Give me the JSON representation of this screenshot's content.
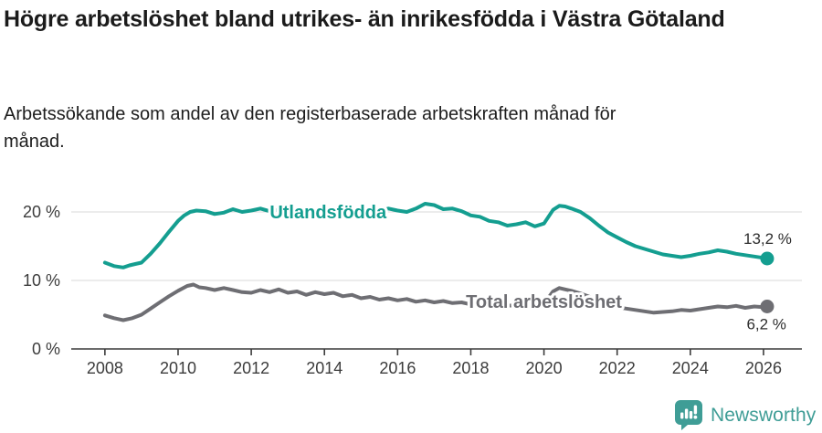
{
  "header": {
    "title": "Högre arbetslöshet bland utrikes- än inrikesfödda i Västra Götaland",
    "subtitle": "Arbetssökande som andel av den registerbaserade arbetskraften månad för månad."
  },
  "footer": {
    "brand": "Newsworthy",
    "brand_color": "#3F9D96"
  },
  "colors": {
    "accent_teal": "#149E90",
    "neutral_gray": "#6E6E73",
    "grid": "#d9d9d9",
    "axis": "#3c3c3c",
    "text_dark": "#1b1b1b"
  },
  "chart_data": {
    "type": "line",
    "title": "",
    "xlabel": "",
    "ylabel": "",
    "grid": "horizontal",
    "legend_position": "inline-labels",
    "xlim": [
      2007.08,
      2027.05
    ],
    "ylim": [
      0,
      22.4
    ],
    "x_ticks": [
      2008,
      2010,
      2012,
      2014,
      2016,
      2018,
      2020,
      2022,
      2024,
      2026
    ],
    "y_ticks": [
      {
        "value": 0,
        "label": "0 %"
      },
      {
        "value": 10,
        "label": "10 %"
      },
      {
        "value": 20,
        "label": "20 %"
      }
    ],
    "series": [
      {
        "name": "Utlandsfödda",
        "color": "#149E90",
        "end_label": "13,2 %",
        "end_value": 13.2,
        "end_label_side": "above",
        "label_at": {
          "x": 2014.1,
          "y": 19.05
        },
        "points": [
          [
            2008.0,
            12.6
          ],
          [
            2008.25,
            12.1
          ],
          [
            2008.5,
            11.9
          ],
          [
            2008.67,
            12.2
          ],
          [
            2008.83,
            12.4
          ],
          [
            2009.0,
            12.6
          ],
          [
            2009.25,
            13.9
          ],
          [
            2009.5,
            15.4
          ],
          [
            2009.75,
            17.1
          ],
          [
            2010.0,
            18.7
          ],
          [
            2010.17,
            19.5
          ],
          [
            2010.33,
            20.0
          ],
          [
            2010.5,
            20.2
          ],
          [
            2010.75,
            20.1
          ],
          [
            2011.0,
            19.7
          ],
          [
            2011.25,
            19.9
          ],
          [
            2011.5,
            20.4
          ],
          [
            2011.75,
            20.0
          ],
          [
            2012.0,
            20.2
          ],
          [
            2012.25,
            20.5
          ],
          [
            2012.5,
            20.1
          ],
          [
            2012.75,
            20.3
          ],
          [
            2013.0,
            20.0
          ],
          [
            2013.25,
            19.9
          ],
          [
            2013.5,
            20.2
          ],
          [
            2013.75,
            19.9
          ],
          [
            2014.0,
            20.1
          ],
          [
            2014.25,
            19.8
          ],
          [
            2014.5,
            20.0
          ],
          [
            2014.75,
            20.3
          ],
          [
            2015.0,
            20.6
          ],
          [
            2015.25,
            20.3
          ],
          [
            2015.5,
            20.1
          ],
          [
            2015.75,
            20.5
          ],
          [
            2016.0,
            20.2
          ],
          [
            2016.25,
            20.0
          ],
          [
            2016.5,
            20.5
          ],
          [
            2016.75,
            21.2
          ],
          [
            2017.0,
            21.0
          ],
          [
            2017.25,
            20.4
          ],
          [
            2017.5,
            20.5
          ],
          [
            2017.75,
            20.1
          ],
          [
            2018.0,
            19.5
          ],
          [
            2018.25,
            19.3
          ],
          [
            2018.5,
            18.7
          ],
          [
            2018.75,
            18.5
          ],
          [
            2019.0,
            18.0
          ],
          [
            2019.25,
            18.2
          ],
          [
            2019.5,
            18.5
          ],
          [
            2019.75,
            17.9
          ],
          [
            2020.0,
            18.3
          ],
          [
            2020.25,
            20.3
          ],
          [
            2020.42,
            20.9
          ],
          [
            2020.58,
            20.8
          ],
          [
            2020.75,
            20.5
          ],
          [
            2021.0,
            20.0
          ],
          [
            2021.25,
            19.1
          ],
          [
            2021.5,
            18.0
          ],
          [
            2021.75,
            17.0
          ],
          [
            2022.0,
            16.3
          ],
          [
            2022.25,
            15.6
          ],
          [
            2022.5,
            15.0
          ],
          [
            2022.75,
            14.6
          ],
          [
            2023.0,
            14.2
          ],
          [
            2023.25,
            13.8
          ],
          [
            2023.5,
            13.6
          ],
          [
            2023.75,
            13.4
          ],
          [
            2024.0,
            13.6
          ],
          [
            2024.25,
            13.9
          ],
          [
            2024.5,
            14.1
          ],
          [
            2024.75,
            14.4
          ],
          [
            2025.0,
            14.2
          ],
          [
            2025.25,
            13.9
          ],
          [
            2025.5,
            13.7
          ],
          [
            2025.75,
            13.5
          ],
          [
            2026.0,
            13.3
          ],
          [
            2026.1,
            13.2
          ]
        ]
      },
      {
        "name": "Total arbetslöshet",
        "color": "#6E6E73",
        "end_label": "6,2 %",
        "end_value": 6.2,
        "end_label_side": "below",
        "label_at": {
          "x": 2020.0,
          "y": 6.0
        },
        "points": [
          [
            2008.0,
            4.9
          ],
          [
            2008.25,
            4.5
          ],
          [
            2008.5,
            4.2
          ],
          [
            2008.75,
            4.5
          ],
          [
            2009.0,
            5.0
          ],
          [
            2009.25,
            5.9
          ],
          [
            2009.5,
            6.8
          ],
          [
            2009.75,
            7.7
          ],
          [
            2010.0,
            8.5
          ],
          [
            2010.25,
            9.2
          ],
          [
            2010.42,
            9.4
          ],
          [
            2010.58,
            9.0
          ],
          [
            2010.75,
            8.9
          ],
          [
            2011.0,
            8.6
          ],
          [
            2011.25,
            8.9
          ],
          [
            2011.5,
            8.6
          ],
          [
            2011.75,
            8.3
          ],
          [
            2012.0,
            8.2
          ],
          [
            2012.25,
            8.6
          ],
          [
            2012.5,
            8.3
          ],
          [
            2012.75,
            8.7
          ],
          [
            2013.0,
            8.2
          ],
          [
            2013.25,
            8.4
          ],
          [
            2013.5,
            7.9
          ],
          [
            2013.75,
            8.3
          ],
          [
            2014.0,
            8.0
          ],
          [
            2014.25,
            8.2
          ],
          [
            2014.5,
            7.7
          ],
          [
            2014.75,
            7.9
          ],
          [
            2015.0,
            7.4
          ],
          [
            2015.25,
            7.6
          ],
          [
            2015.5,
            7.2
          ],
          [
            2015.75,
            7.4
          ],
          [
            2016.0,
            7.1
          ],
          [
            2016.25,
            7.3
          ],
          [
            2016.5,
            6.9
          ],
          [
            2016.75,
            7.1
          ],
          [
            2017.0,
            6.8
          ],
          [
            2017.25,
            7.0
          ],
          [
            2017.5,
            6.7
          ],
          [
            2017.75,
            6.8
          ],
          [
            2018.0,
            6.5
          ],
          [
            2018.25,
            6.6
          ],
          [
            2018.5,
            6.4
          ],
          [
            2018.75,
            6.5
          ],
          [
            2019.0,
            6.3
          ],
          [
            2019.25,
            6.4
          ],
          [
            2019.5,
            6.5
          ],
          [
            2019.75,
            6.4
          ],
          [
            2020.0,
            6.6
          ],
          [
            2020.25,
            8.4
          ],
          [
            2020.42,
            8.9
          ],
          [
            2020.58,
            8.7
          ],
          [
            2020.75,
            8.5
          ],
          [
            2021.0,
            8.1
          ],
          [
            2021.25,
            7.6
          ],
          [
            2021.5,
            7.0
          ],
          [
            2021.75,
            6.5
          ],
          [
            2022.0,
            6.1
          ],
          [
            2022.25,
            5.9
          ],
          [
            2022.5,
            5.7
          ],
          [
            2022.75,
            5.5
          ],
          [
            2023.0,
            5.3
          ],
          [
            2023.25,
            5.4
          ],
          [
            2023.5,
            5.5
          ],
          [
            2023.75,
            5.7
          ],
          [
            2024.0,
            5.6
          ],
          [
            2024.25,
            5.8
          ],
          [
            2024.5,
            6.0
          ],
          [
            2024.75,
            6.2
          ],
          [
            2025.0,
            6.1
          ],
          [
            2025.25,
            6.3
          ],
          [
            2025.5,
            6.0
          ],
          [
            2025.75,
            6.2
          ],
          [
            2026.0,
            6.1
          ],
          [
            2026.1,
            6.2
          ]
        ]
      }
    ]
  }
}
